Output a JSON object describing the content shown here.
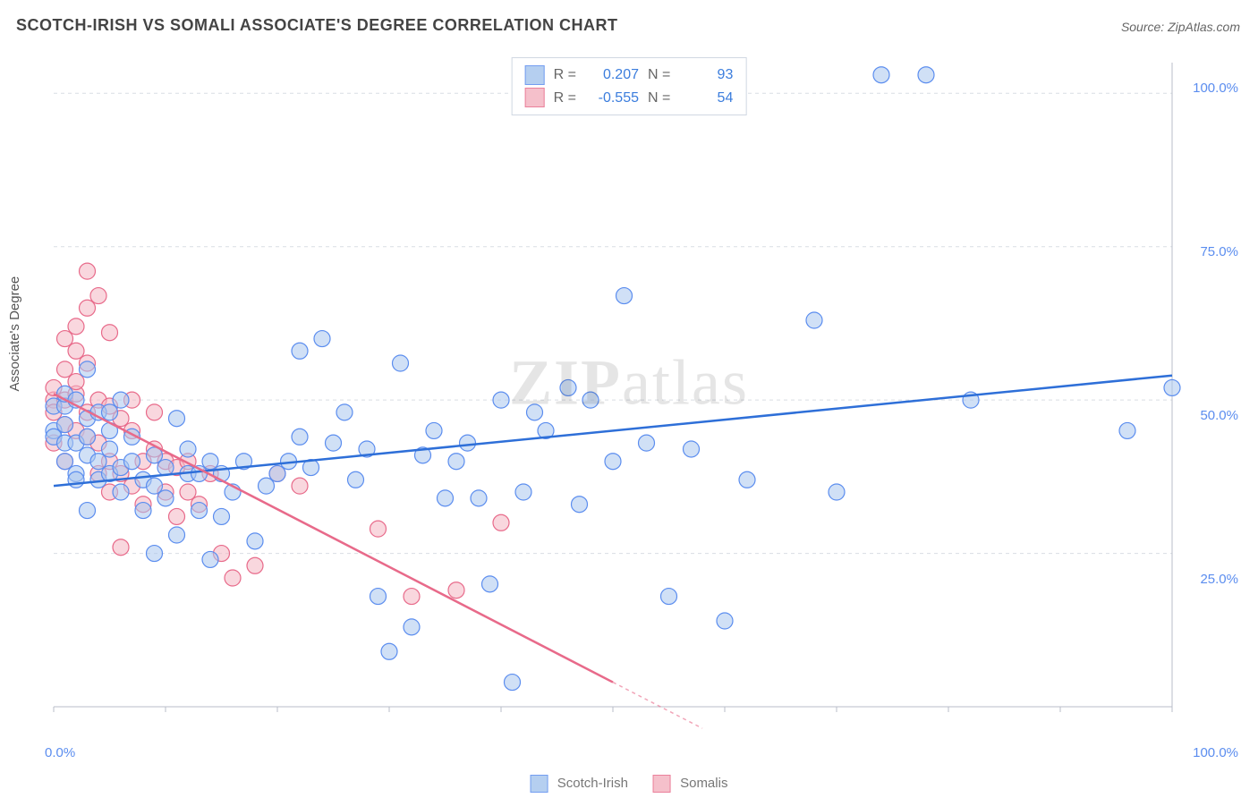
{
  "title": "SCOTCH-IRISH VS SOMALI ASSOCIATE'S DEGREE CORRELATION CHART",
  "source": "Source: ZipAtlas.com",
  "chart": {
    "type": "scatter",
    "ylabel": "Associate's Degree",
    "xlim": [
      0,
      100
    ],
    "ylim": [
      0,
      105
    ],
    "xticks": [
      "0.0%",
      "100.0%"
    ],
    "yticks": [
      "25.0%",
      "50.0%",
      "75.0%",
      "100.0%"
    ],
    "grid_color": "#d9dde3",
    "axis_color": "#b9bec8",
    "background_color": "#ffffff",
    "marker_radius": 9,
    "marker_stroke_width": 1.2,
    "trend_line_width": 2.5,
    "label_fontsize": 15,
    "tick_color": "#5b8def",
    "stats": {
      "r_label": "R =",
      "n_label": "N ="
    },
    "series": [
      {
        "name": "Scotch-Irish",
        "fill": "#a9c7ee",
        "stroke": "#5b8def",
        "fill_opacity": 0.55,
        "trend_color": "#2e6fd8",
        "trend": {
          "x1": 0,
          "y1": 36,
          "x2": 100,
          "y2": 54
        },
        "R": "0.207",
        "N": "93",
        "points": [
          [
            0,
            49
          ],
          [
            0,
            45
          ],
          [
            0,
            44
          ],
          [
            1,
            49
          ],
          [
            1,
            51
          ],
          [
            1,
            43
          ],
          [
            1,
            40
          ],
          [
            1,
            46
          ],
          [
            2,
            43
          ],
          [
            2,
            50
          ],
          [
            2,
            38
          ],
          [
            2,
            37
          ],
          [
            3,
            47
          ],
          [
            3,
            44
          ],
          [
            3,
            41
          ],
          [
            3,
            32
          ],
          [
            3,
            55
          ],
          [
            4,
            48
          ],
          [
            4,
            40
          ],
          [
            4,
            37
          ],
          [
            5,
            45
          ],
          [
            5,
            42
          ],
          [
            5,
            38
          ],
          [
            5,
            48
          ],
          [
            6,
            50
          ],
          [
            6,
            39
          ],
          [
            6,
            35
          ],
          [
            7,
            44
          ],
          [
            7,
            40
          ],
          [
            8,
            37
          ],
          [
            8,
            32
          ],
          [
            9,
            36
          ],
          [
            9,
            41
          ],
          [
            9,
            25
          ],
          [
            10,
            39
          ],
          [
            10,
            34
          ],
          [
            11,
            47
          ],
          [
            11,
            28
          ],
          [
            12,
            38
          ],
          [
            12,
            42
          ],
          [
            13,
            38
          ],
          [
            13,
            32
          ],
          [
            14,
            24
          ],
          [
            14,
            40
          ],
          [
            15,
            38
          ],
          [
            15,
            31
          ],
          [
            16,
            35
          ],
          [
            17,
            40
          ],
          [
            18,
            27
          ],
          [
            19,
            36
          ],
          [
            20,
            38
          ],
          [
            21,
            40
          ],
          [
            22,
            44
          ],
          [
            22,
            58
          ],
          [
            23,
            39
          ],
          [
            24,
            60
          ],
          [
            25,
            43
          ],
          [
            26,
            48
          ],
          [
            27,
            37
          ],
          [
            28,
            42
          ],
          [
            29,
            18
          ],
          [
            30,
            9
          ],
          [
            31,
            56
          ],
          [
            32,
            13
          ],
          [
            33,
            41
          ],
          [
            34,
            45
          ],
          [
            35,
            34
          ],
          [
            36,
            40
          ],
          [
            37,
            43
          ],
          [
            38,
            34
          ],
          [
            39,
            20
          ],
          [
            40,
            50
          ],
          [
            41,
            4
          ],
          [
            42,
            35
          ],
          [
            43,
            48
          ],
          [
            44,
            45
          ],
          [
            46,
            52
          ],
          [
            47,
            33
          ],
          [
            48,
            50
          ],
          [
            50,
            40
          ],
          [
            51,
            67
          ],
          [
            53,
            43
          ],
          [
            55,
            18
          ],
          [
            57,
            42
          ],
          [
            60,
            14
          ],
          [
            62,
            37
          ],
          [
            68,
            63
          ],
          [
            70,
            35
          ],
          [
            74,
            103
          ],
          [
            78,
            103
          ],
          [
            82,
            50
          ],
          [
            96,
            45
          ],
          [
            100,
            52
          ]
        ]
      },
      {
        "name": "Somalis",
        "fill": "#f4b6c3",
        "stroke": "#e86a8a",
        "fill_opacity": 0.55,
        "trend_color": "#e86a8a",
        "trend": {
          "x1": 0,
          "y1": 51,
          "x2": 50,
          "y2": 4
        },
        "R": "-0.555",
        "N": "54",
        "points": [
          [
            0,
            50
          ],
          [
            0,
            52
          ],
          [
            0,
            48
          ],
          [
            0,
            43
          ],
          [
            1,
            55
          ],
          [
            1,
            50
          ],
          [
            1,
            46
          ],
          [
            1,
            40
          ],
          [
            1,
            60
          ],
          [
            2,
            51
          ],
          [
            2,
            45
          ],
          [
            2,
            53
          ],
          [
            2,
            58
          ],
          [
            2,
            62
          ],
          [
            3,
            44
          ],
          [
            3,
            48
          ],
          [
            3,
            56
          ],
          [
            3,
            71
          ],
          [
            3,
            65
          ],
          [
            4,
            50
          ],
          [
            4,
            43
          ],
          [
            4,
            38
          ],
          [
            4,
            67
          ],
          [
            5,
            49
          ],
          [
            5,
            40
          ],
          [
            5,
            35
          ],
          [
            5,
            61
          ],
          [
            6,
            47
          ],
          [
            6,
            38
          ],
          [
            6,
            26
          ],
          [
            7,
            45
          ],
          [
            7,
            36
          ],
          [
            7,
            50
          ],
          [
            8,
            40
          ],
          [
            8,
            33
          ],
          [
            9,
            42
          ],
          [
            9,
            48
          ],
          [
            10,
            40
          ],
          [
            10,
            35
          ],
          [
            11,
            39
          ],
          [
            11,
            31
          ],
          [
            12,
            35
          ],
          [
            12,
            40
          ],
          [
            13,
            33
          ],
          [
            14,
            38
          ],
          [
            15,
            25
          ],
          [
            16,
            21
          ],
          [
            18,
            23
          ],
          [
            20,
            38
          ],
          [
            22,
            36
          ],
          [
            29,
            29
          ],
          [
            32,
            18
          ],
          [
            36,
            19
          ],
          [
            40,
            30
          ]
        ]
      }
    ]
  }
}
